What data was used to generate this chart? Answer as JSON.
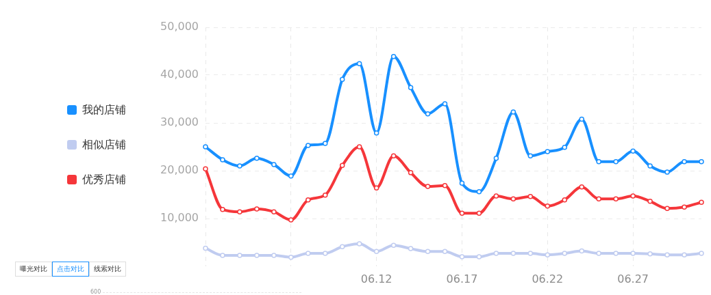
{
  "chart_data": {
    "type": "line",
    "categories": [
      null,
      null,
      null,
      null,
      null,
      null,
      null,
      null,
      null,
      null,
      "06.12",
      null,
      null,
      null,
      null,
      "06.17",
      null,
      null,
      null,
      null,
      "06.22",
      null,
      null,
      null,
      null,
      "06.27",
      null,
      null,
      null,
      null
    ],
    "series": [
      {
        "name": "我的店铺",
        "color": "#1890ff",
        "values": [
          25000,
          22300,
          21000,
          22600,
          21300,
          18900,
          25300,
          25700,
          39100,
          42400,
          27900,
          43900,
          37400,
          31900,
          34000,
          17400,
          15600,
          22600,
          32300,
          23100,
          24000,
          24900,
          30800,
          21900,
          21900,
          24100,
          21000,
          19700,
          21900,
          21900
        ]
      },
      {
        "name": "相似店铺",
        "color": "#c0ccf0",
        "values": [
          3800,
          2300,
          2300,
          2300,
          2300,
          1900,
          2700,
          2700,
          4100,
          4700,
          3100,
          4400,
          3700,
          3100,
          3100,
          2000,
          2000,
          2700,
          2700,
          2700,
          2400,
          2700,
          3200,
          2700,
          2700,
          2700,
          2600,
          2400,
          2400,
          2700
        ]
      },
      {
        "name": "优秀店铺",
        "color": "#f5363a",
        "values": [
          20400,
          11900,
          11400,
          12000,
          11400,
          9700,
          13900,
          14900,
          21100,
          25000,
          16400,
          23100,
          19600,
          16700,
          16900,
          11100,
          11100,
          14700,
          14100,
          14600,
          12600,
          13900,
          16600,
          14100,
          14100,
          14700,
          13600,
          12100,
          12400,
          13400
        ]
      }
    ],
    "ylim": [
      0,
      50000
    ],
    "yticks": [
      {
        "value": 10000,
        "label": "10,000"
      },
      {
        "value": 20000,
        "label": "20,000"
      },
      {
        "value": 30000,
        "label": "30,000"
      },
      {
        "value": 40000,
        "label": "40,000"
      },
      {
        "value": 50000,
        "label": "50,000"
      }
    ],
    "grid": true,
    "legend": "left",
    "marker": "circle",
    "line_style": "solid",
    "annotations": [
      "曝光对比",
      "点击对比",
      "线索对比",
      "600"
    ]
  }
}
